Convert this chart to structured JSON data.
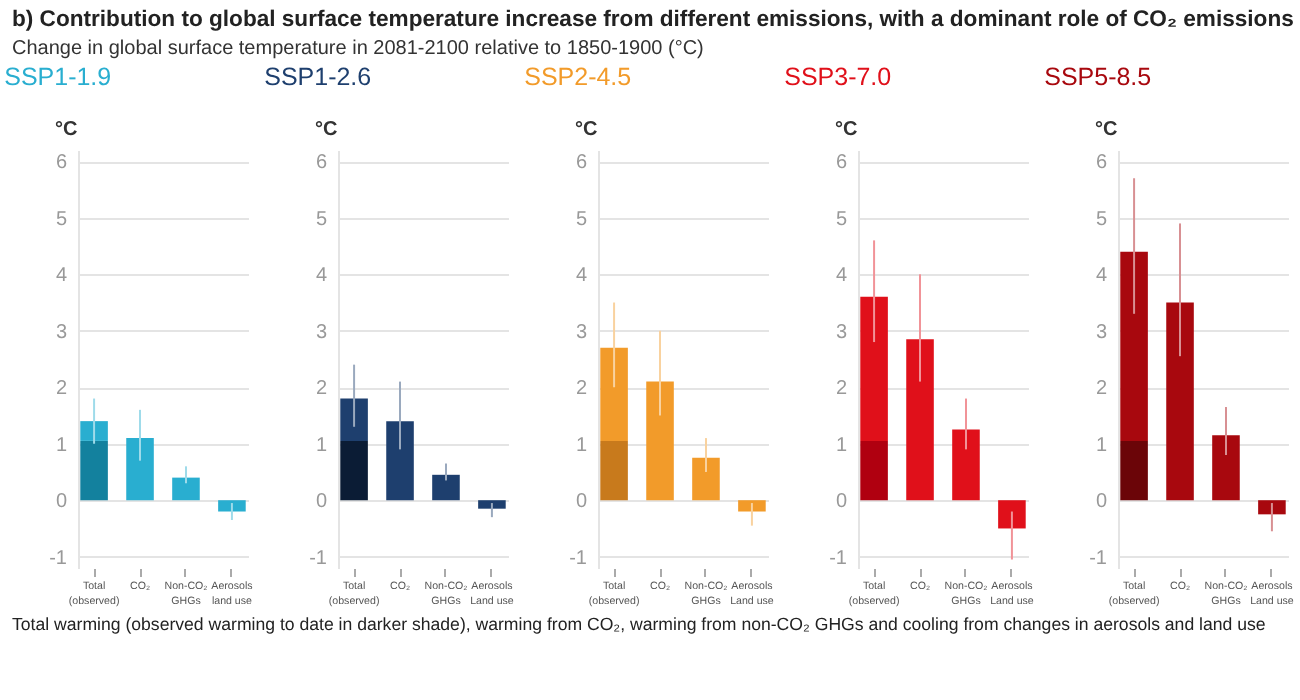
{
  "chart_data": [
    {
      "type": "other",
      "title": "b) Contribution to global surface temperature increase from different emissions, with a dominant role of CO₂ emissions",
      "subtitle": "Change in global surface temperature in 2081-2100 relative to 1850-1900 (°C)",
      "annotations": [
        "Total warming (observed warming to date in darker shade), warming from CO₂, warming from non-CO₂ GHGs and cooling from changes in aerosols and land use"
      ]
    },
    {
      "type": "bar",
      "title": "SSP1-1.9",
      "ylabel": "°C",
      "categories": [
        "Total\n(observed)",
        "CO₂",
        "Non-CO₂\nGHGs",
        "Aerosols\nland use"
      ],
      "stacked": true,
      "ylim": [
        -1.2,
        6.2
      ],
      "yticks": [
        -1,
        0,
        1,
        2,
        3,
        4,
        5,
        6
      ],
      "grid": "y",
      "series": [
        {
          "color": "#13819e",
          "values": [
            1.05,
            null,
            null,
            null
          ]
        },
        {
          "color": "#29aed0",
          "values": [
            0.35,
            1.1,
            0.4,
            -0.2
          ],
          "errors": [
            [
              1.0,
              1.8
            ],
            [
              0.7,
              1.6
            ],
            [
              0.3,
              0.6
            ],
            [
              -0.35,
              -0.05
            ]
          ]
        }
      ]
    },
    {
      "type": "bar",
      "title": "SSP1-2.6",
      "ylabel": "°C",
      "categories": [
        "Total\n(observed)",
        "CO₂",
        "Non-CO₂\nGHGs",
        "Aerosols\nLand use"
      ],
      "stacked": true,
      "ylim": [
        -1.2,
        6.2
      ],
      "yticks": [
        -1,
        0,
        1,
        2,
        3,
        4,
        5,
        6
      ],
      "grid": "y",
      "series": [
        {
          "color": "#0b1c35",
          "values": [
            1.05,
            null,
            null,
            null
          ]
        },
        {
          "color": "#1e3f6e",
          "values": [
            0.75,
            1.4,
            0.45,
            -0.15
          ],
          "errors": [
            [
              1.3,
              2.4
            ],
            [
              0.9,
              2.1
            ],
            [
              0.35,
              0.65
            ],
            [
              -0.3,
              -0.05
            ]
          ]
        }
      ]
    },
    {
      "type": "bar",
      "title": "SSP2-4.5",
      "ylabel": "°C",
      "categories": [
        "Total\n(observed)",
        "CO₂",
        "Non-CO₂\nGHGs",
        "Aerosols\nLand use"
      ],
      "stacked": true,
      "ylim": [
        -1.2,
        6.2
      ],
      "yticks": [
        -1,
        0,
        1,
        2,
        3,
        4,
        5,
        6
      ],
      "grid": "y",
      "series": [
        {
          "color": "#c87a1c",
          "values": [
            1.05,
            null,
            null,
            null
          ]
        },
        {
          "color": "#f29b2a",
          "values": [
            1.65,
            2.1,
            0.75,
            -0.2
          ],
          "errors": [
            [
              2.0,
              3.5
            ],
            [
              1.5,
              3.0
            ],
            [
              0.5,
              1.1
            ],
            [
              -0.45,
              -0.05
            ]
          ]
        }
      ]
    },
    {
      "type": "bar",
      "title": "SSP3-7.0",
      "ylabel": "°C",
      "categories": [
        "Total\n(observed)",
        "CO₂",
        "Non-CO₂\nGHGs",
        "Aerosols\nLand use"
      ],
      "stacked": true,
      "ylim": [
        -1.2,
        6.2
      ],
      "yticks": [
        -1,
        0,
        1,
        2,
        3,
        4,
        5,
        6
      ],
      "grid": "y",
      "series": [
        {
          "color": "#b00010",
          "values": [
            1.05,
            null,
            null,
            null
          ]
        },
        {
          "color": "#e0101a",
          "values": [
            2.55,
            2.85,
            1.25,
            -0.5
          ],
          "errors": [
            [
              2.8,
              4.6
            ],
            [
              2.1,
              4.0
            ],
            [
              0.9,
              1.8
            ],
            [
              -1.05,
              -0.2
            ]
          ]
        }
      ]
    },
    {
      "type": "bar",
      "title": "SSP5-8.5",
      "ylabel": "°C",
      "categories": [
        "Total\n(observed)",
        "CO₂",
        "Non-CO₂\nGHGs",
        "Aerosols\nLand use"
      ],
      "stacked": true,
      "ylim": [
        -1.2,
        6.2
      ],
      "yticks": [
        -1,
        0,
        1,
        2,
        3,
        4,
        5,
        6
      ],
      "grid": "y",
      "series": [
        {
          "color": "#6b0508",
          "values": [
            1.05,
            null,
            null,
            null
          ]
        },
        {
          "color": "#a8080e",
          "values": [
            3.35,
            3.5,
            1.15,
            -0.25
          ],
          "errors": [
            [
              3.3,
              5.7
            ],
            [
              2.55,
              4.9
            ],
            [
              0.8,
              1.65
            ],
            [
              -0.55,
              -0.05
            ]
          ]
        }
      ]
    }
  ]
}
